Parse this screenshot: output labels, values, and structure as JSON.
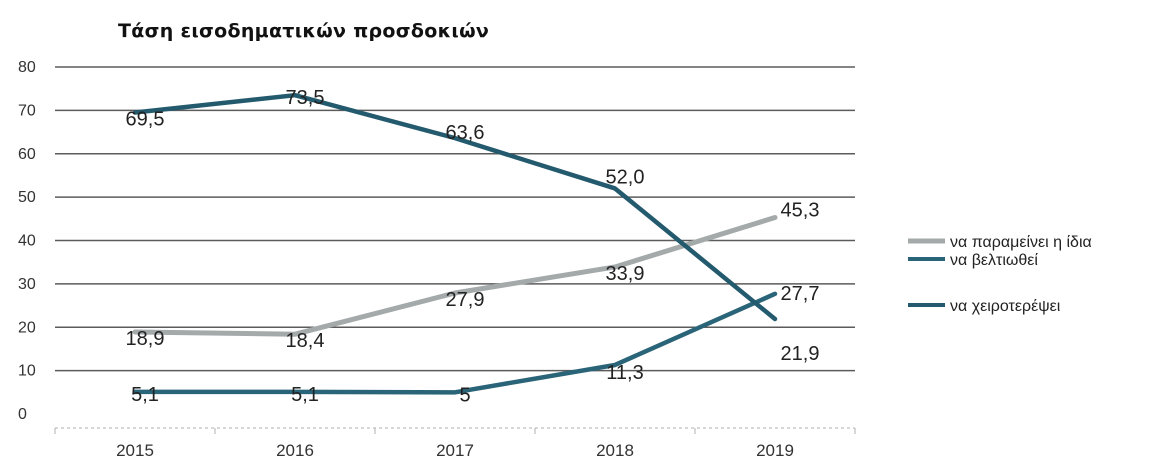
{
  "chart_data": {
    "type": "line",
    "title": "Τάση εισοδηματικών προσδοκιών",
    "x": [
      "2015",
      "2016",
      "2017",
      "2018",
      "2019"
    ],
    "ylim": [
      0,
      80
    ],
    "yticks": [
      0,
      10,
      20,
      30,
      40,
      50,
      60,
      70,
      80
    ],
    "grid": true,
    "legend_position": "right",
    "series": [
      {
        "name": "να παραμείνει η ίδια",
        "values": [
          18.9,
          18.4,
          27.9,
          33.9,
          45.3
        ],
        "labels": [
          "18,9",
          "18,4",
          "27,9",
          "33,9",
          "45,3"
        ],
        "color": "#a4a9aa"
      },
      {
        "name": "να βελτιωθεί",
        "values": [
          5.1,
          5.1,
          5,
          11.3,
          27.7
        ],
        "labels": [
          "5,1",
          "5,1",
          "5",
          "11,3",
          "27,7"
        ],
        "color": "#2a6478"
      },
      {
        "name": "να χειροτερέψει",
        "values": [
          69.5,
          73.5,
          63.6,
          52.0,
          21.9
        ],
        "labels": [
          "69,5",
          "73,5",
          "63,6",
          "52,0",
          "21,9"
        ],
        "color": "#245a6d"
      }
    ]
  }
}
